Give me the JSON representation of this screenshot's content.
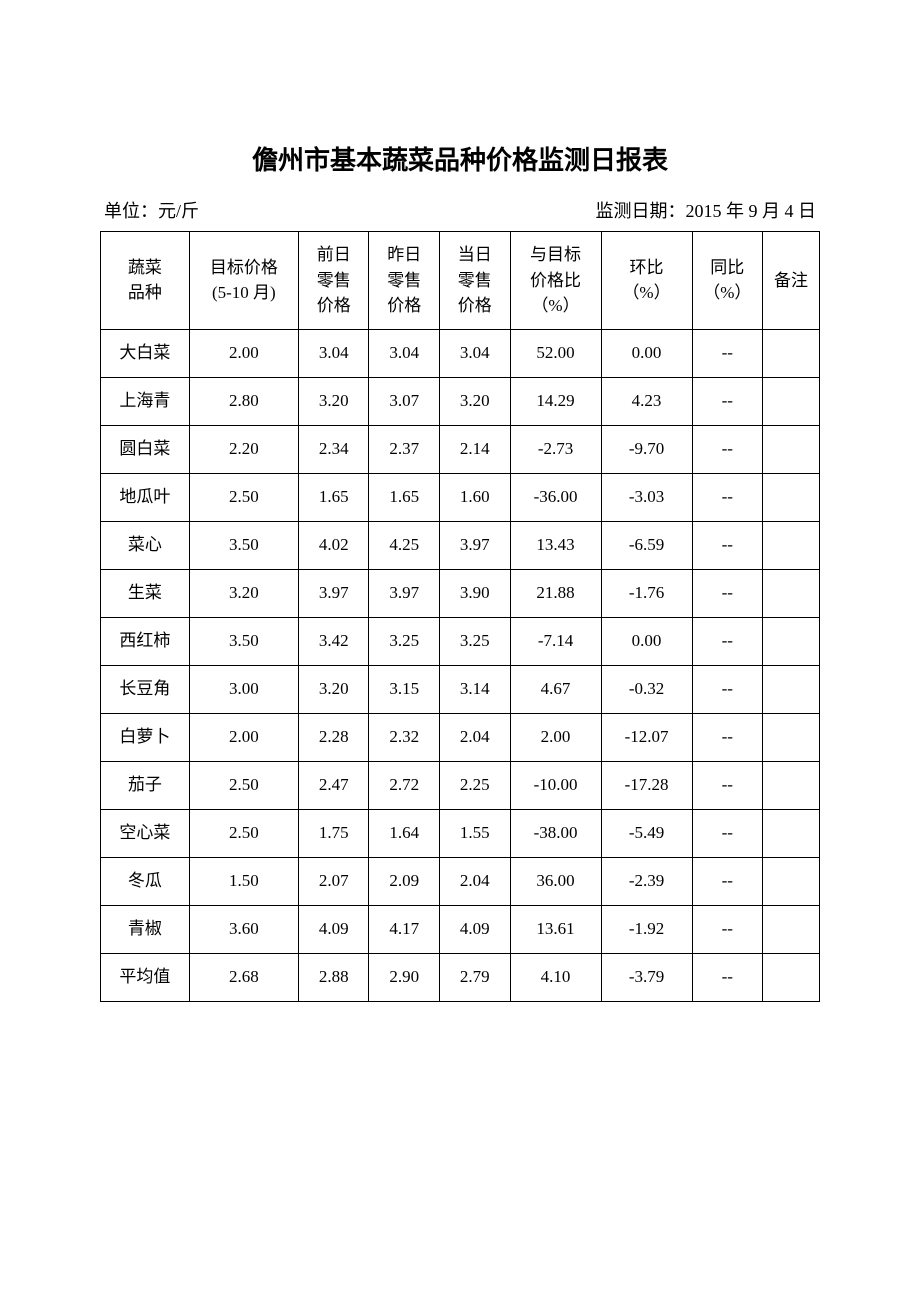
{
  "title": "儋州市基本蔬菜品种价格监测日报表",
  "unit_label": "单位：元/斤",
  "date_label": "监测日期：2015 年 9 月 4 日",
  "table": {
    "columns": [
      "蔬菜\n品种",
      "目标价格\n(5-10 月)",
      "前日\n零售\n价格",
      "昨日\n零售\n价格",
      "当日\n零售\n价格",
      "与目标\n价格比\n（%）",
      "环比\n（%）",
      "同比\n（%）",
      "备注"
    ],
    "rows": [
      [
        "大白菜",
        "2.00",
        "3.04",
        "3.04",
        "3.04",
        "52.00",
        "0.00",
        "--",
        ""
      ],
      [
        "上海青",
        "2.80",
        "3.20",
        "3.07",
        "3.20",
        "14.29",
        "4.23",
        "--",
        ""
      ],
      [
        "圆白菜",
        "2.20",
        "2.34",
        "2.37",
        "2.14",
        "-2.73",
        "-9.70",
        "--",
        ""
      ],
      [
        "地瓜叶",
        "2.50",
        "1.65",
        "1.65",
        "1.60",
        "-36.00",
        "-3.03",
        "--",
        ""
      ],
      [
        "菜心",
        "3.50",
        "4.02",
        "4.25",
        "3.97",
        "13.43",
        "-6.59",
        "--",
        ""
      ],
      [
        "生菜",
        "3.20",
        "3.97",
        "3.97",
        "3.90",
        "21.88",
        "-1.76",
        "--",
        ""
      ],
      [
        "西红柿",
        "3.50",
        "3.42",
        "3.25",
        "3.25",
        "-7.14",
        "0.00",
        "--",
        ""
      ],
      [
        "长豆角",
        "3.00",
        "3.20",
        "3.15",
        "3.14",
        "4.67",
        "-0.32",
        "--",
        ""
      ],
      [
        "白萝卜",
        "2.00",
        "2.28",
        "2.32",
        "2.04",
        "2.00",
        "-12.07",
        "--",
        ""
      ],
      [
        "茄子",
        "2.50",
        "2.47",
        "2.72",
        "2.25",
        "-10.00",
        "-17.28",
        "--",
        ""
      ],
      [
        "空心菜",
        "2.50",
        "1.75",
        "1.64",
        "1.55",
        "-38.00",
        "-5.49",
        "--",
        ""
      ],
      [
        "冬瓜",
        "1.50",
        "2.07",
        "2.09",
        "2.04",
        "36.00",
        "-2.39",
        "--",
        ""
      ],
      [
        "青椒",
        "3.60",
        "4.09",
        "4.17",
        "4.09",
        "13.61",
        "-1.92",
        "--",
        ""
      ],
      [
        "平均值",
        "2.68",
        "2.88",
        "2.90",
        "2.79",
        "4.10",
        "-3.79",
        "--",
        ""
      ]
    ],
    "col_classes": [
      "col-name",
      "col-target",
      "col-prev",
      "col-yest",
      "col-today",
      "col-vs",
      "col-hb",
      "col-tb",
      "col-note"
    ]
  },
  "styling": {
    "background_color": "#ffffff",
    "border_color": "#000000",
    "title_fontsize": 26,
    "body_fontsize": 17,
    "meta_fontsize": 18,
    "font_family": "SimSun"
  }
}
